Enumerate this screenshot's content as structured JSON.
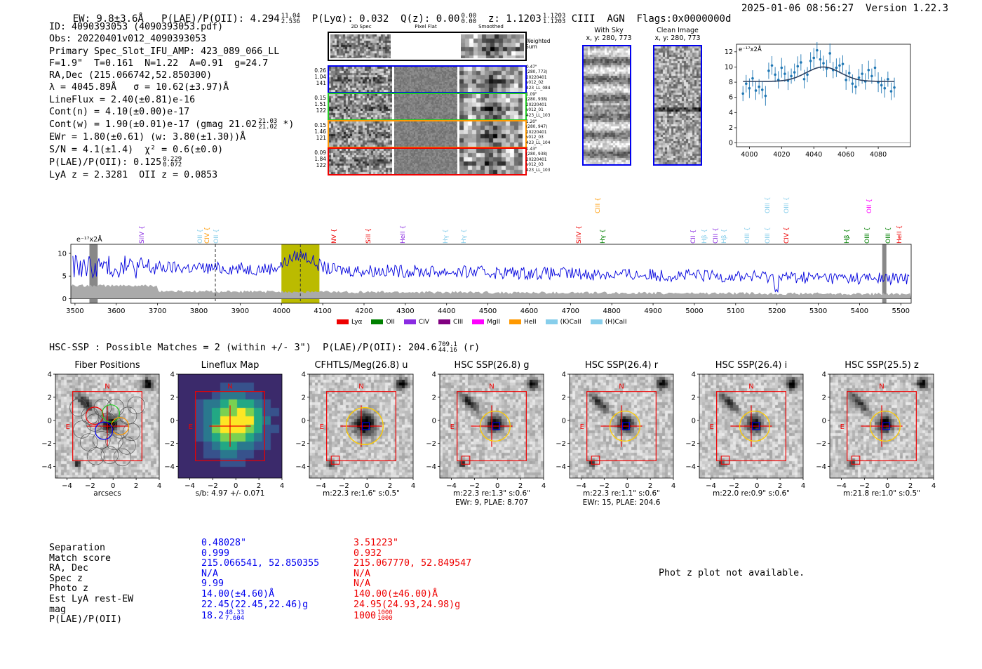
{
  "header": {
    "ew": "EW: 9.8±3.6Å",
    "plae_label": "P(LAE)/P(OII): 4.294",
    "plae_hi": "11.04",
    "plae_lo": "2.536",
    "plya": "P(Lyα): 0.032",
    "qz_label": "Q(z): 0.00",
    "qz_hi": "0.00",
    "qz_lo": "0.00",
    "z_label": "z: 1.1203",
    "z_hi": "1.1203",
    "z_lo": "1.1203",
    "tail": "CIII  AGN  Flags:0x0000000d",
    "datetime": "2025-01-06 08:56:27",
    "version": "Version 1.22.3"
  },
  "info": {
    "lines": [
      "ID: 4090393053 (4090393053.pdf)",
      "Obs: 20220401v012_4090393053",
      "Primary Spec_Slot_IFU_AMP: 423_089_066_LL",
      "F=1.9\"  T=0.161  N=1.22  A=0.91  g=24.7",
      "RA,Dec (215.066742,52.850300)",
      "λ = 4045.89Å   σ = 10.62(±3.97)Å",
      "LineFlux = 2.40(±0.81)e-16",
      "Cont(n) = 4.10(±0.00)e-17"
    ],
    "contw": "Cont(w) = 1.90(±0.01)e-17 (gmag 21.02",
    "contw_hi": "21.03",
    "contw_lo": "21.02",
    "contw_end": "*)",
    "ewr": "EWr = 1.80(±0.61) (w: 3.80(±1.30))Å",
    "sn": "S/N = 4.1(±1.4)  χ² = 0.6(±0.0)",
    "plae2": "P(LAE)/P(OII): 0.125",
    "plae2_hi": "0.229",
    "plae2_lo": "0.072",
    "lyaz": "LyA z = 2.3281  OII z = 0.0853"
  },
  "cutouts": {
    "col_titles": [
      "2D Spec",
      "Pixel Flat",
      "Smoothed"
    ],
    "weighted": "Weighted\nSum",
    "rows": [
      {
        "vals": [
          "0.26",
          "1.04",
          "141"
        ],
        "notes": [
          "0.47\"",
          "(280, 773)",
          "20220401",
          "v012_02",
          "423_LL_084"
        ],
        "color": "#0000ee"
      },
      {
        "vals": [
          "0.15",
          "1.51",
          "122"
        ],
        "notes": [
          "1.09\"",
          "(280, 938)",
          "20220401",
          "v012_01",
          "423_LL_103"
        ],
        "color": "#22cc22"
      },
      {
        "vals": [
          "0.15",
          "1.46",
          "121"
        ],
        "notes": [
          "1.20\"",
          "(280, 947)",
          "20220401",
          "v012_03",
          "423_LL_104"
        ],
        "color": "#ff9900"
      },
      {
        "vals": [
          "0.09",
          "1.84",
          "122"
        ],
        "notes": [
          "1.43\"",
          "(280, 938)",
          "20220401",
          "v012_03",
          "423_LL_103"
        ],
        "color": "#ee0000"
      }
    ]
  },
  "sky": {
    "title1": "With Sky",
    "sub1": "x, y: 280, 773",
    "title2": "Clean Image",
    "sub2": "x, y: 280, 773"
  },
  "zoom_chart": {
    "type": "line",
    "unit": "e⁻¹⁷x2Å",
    "xticks": [
      4000,
      4020,
      4040,
      4060,
      4080
    ],
    "yticks": [
      0,
      2,
      4,
      6,
      8,
      10,
      12
    ],
    "xlim": [
      3992,
      4100
    ],
    "ylim": [
      -0.5,
      13
    ],
    "x": [
      3996,
      3998,
      4000,
      4002,
      4004,
      4006,
      4008,
      4010,
      4012,
      4014,
      4016,
      4018,
      4020,
      4022,
      4024,
      4026,
      4028,
      4030,
      4032,
      4034,
      4036,
      4038,
      4040,
      4042,
      4044,
      4046,
      4048,
      4050,
      4052,
      4054,
      4056,
      4058,
      4060,
      4062,
      4064,
      4066,
      4068,
      4070,
      4072,
      4074,
      4076,
      4078,
      4080,
      4082,
      4084,
      4086,
      4088,
      4090
    ],
    "y": [
      6.5,
      7.8,
      7.2,
      8.5,
      6.9,
      7.4,
      7.0,
      6.2,
      9.5,
      10.2,
      9.0,
      8.3,
      9.9,
      9.1,
      8.2,
      8.8,
      9.3,
      10.1,
      10.6,
      8.4,
      9.0,
      10.8,
      11.2,
      12.2,
      11.0,
      10.5,
      9.8,
      11.8,
      9.6,
      9.9,
      10.2,
      10.4,
      8.3,
      9.2,
      7.8,
      7.4,
      8.6,
      9.1,
      8.1,
      9.6,
      8.8,
      9.9,
      8.0,
      7.6,
      7.2,
      8.4,
      6.8,
      7.3
    ],
    "fit_base": 8.1,
    "fit_amp": 1.9,
    "fit_center": 4045.9,
    "fit_sigma": 10.62
  },
  "spectrum": {
    "unit": "e⁻¹⁷x2Å",
    "xticks": [
      3500,
      3600,
      3700,
      3800,
      3900,
      4000,
      4100,
      4200,
      4300,
      4400,
      4500,
      4600,
      4700,
      4800,
      4900,
      5000,
      5100,
      5200,
      5300,
      5400,
      5500
    ],
    "yticks": [
      0,
      5,
      10
    ],
    "xlim": [
      3490,
      5525
    ],
    "ylim": [
      -1,
      12
    ],
    "highlight": [
      4000,
      4092
    ],
    "center": 4045.9,
    "dash_extra": 3840,
    "gray_bands": [
      [
        3535,
        3555
      ],
      [
        5455,
        5465
      ]
    ],
    "lines": [
      {
        "name": "SiIV {",
        "x": 3663,
        "color": "#8a2be2",
        "row": 1
      },
      {
        "name": "OII {",
        "x": 3804,
        "color": "#87ceeb",
        "row": 1
      },
      {
        "name": "CIV {",
        "x": 3822,
        "color": "#ff9900",
        "row": 1
      },
      {
        "name": "OII {",
        "x": 3843,
        "color": "#87ceeb",
        "row": 1
      },
      {
        "name": "NV {",
        "x": 4128,
        "color": "#ee0000",
        "row": 1
      },
      {
        "name": "SiII {",
        "x": 4212,
        "color": "#ee0000",
        "row": 1
      },
      {
        "name": "HeII {",
        "x": 4296,
        "color": "#8a2be2",
        "row": 1
      },
      {
        "name": "Hγ {",
        "x": 4398,
        "color": "#87ceeb",
        "row": 1
      },
      {
        "name": "Hγ {",
        "x": 4443,
        "color": "#87ceeb",
        "row": 1
      },
      {
        "name": "SiIV {",
        "x": 4722,
        "color": "#ee0000",
        "row": 1
      },
      {
        "name": "Hγ {",
        "x": 4779,
        "color": "#008000",
        "row": 1
      },
      {
        "name": "CIII {",
        "x": 4768,
        "color": "#ff9900",
        "row": 0
      },
      {
        "name": "CII {",
        "x": 4998,
        "color": "#8a2be2",
        "row": 1
      },
      {
        "name": "Hβ {",
        "x": 5025,
        "color": "#87ceeb",
        "row": 1
      },
      {
        "name": "CIII {",
        "x": 5052,
        "color": "#8a2be2",
        "row": 1
      },
      {
        "name": "Hβ {",
        "x": 5073,
        "color": "#87ceeb",
        "row": 1
      },
      {
        "name": "OIII {",
        "x": 5130,
        "color": "#87ceeb",
        "row": 1
      },
      {
        "name": "OIII {",
        "x": 5178,
        "color": "#87ceeb",
        "row": 1
      },
      {
        "name": "OIII {",
        "x": 5178,
        "color": "#87ceeb",
        "row": 0
      },
      {
        "name": "CIV {",
        "x": 5224,
        "color": "#ee0000",
        "row": 1
      },
      {
        "name": "OIII {",
        "x": 5225,
        "color": "#87ceeb",
        "row": 0
      },
      {
        "name": "Hβ {",
        "x": 5370,
        "color": "#008000",
        "row": 1
      },
      {
        "name": "OIII {",
        "x": 5419,
        "color": "#008000",
        "row": 1
      },
      {
        "name": "OII {",
        "x": 5424,
        "color": "#ff00ff",
        "row": 0
      },
      {
        "name": "OIII {",
        "x": 5471,
        "color": "#008000",
        "row": 1
      },
      {
        "name": "HeII {",
        "x": 5497,
        "color": "#ee0000",
        "row": 1
      }
    ],
    "legend": [
      {
        "label": "Lyα",
        "color": "#ee0000"
      },
      {
        "label": "OII",
        "color": "#008000"
      },
      {
        "label": "CIV",
        "color": "#8a2be2"
      },
      {
        "label": "CIII",
        "color": "#800080"
      },
      {
        "label": "MgII",
        "color": "#ff00ff"
      },
      {
        "label": "HeII",
        "color": "#ff9900"
      },
      {
        "label": "(K)CaII",
        "color": "#87ceeb"
      },
      {
        "label": "(H)CaII",
        "color": "#87ceeb"
      }
    ]
  },
  "hsc": {
    "summary": "HSC-SSP : Possible Matches = 2 (within +/- 3\")  P(LAE)/P(OII): 204.6",
    "summary_hi": "709.1",
    "summary_lo": "44.16",
    "summary_band": "(r)"
  },
  "panels": [
    {
      "title": "Fiber Positions",
      "cap1": "arcsecs",
      "cap2": ""
    },
    {
      "title": "Lineflux Map",
      "cap1": "s/b: 4.97 +/- 0.071",
      "cap2": ""
    },
    {
      "title": "CFHTLS/Meg(26.8) u",
      "cap1": "m:22.3  re:1.6\"  s:0.5\"",
      "cap2": ""
    },
    {
      "title": "HSC SSP(26.8) g",
      "cap1": "m:22.3  re:1.3\"  s:0.6\"",
      "cap2": "EWr: 9, PLAE: 8.707"
    },
    {
      "title": "HSC SSP(26.4) r",
      "cap1": "m:22.3  re:1.1\"  s:0.6\"",
      "cap2": "EWr: 15, PLAE: 204.6"
    },
    {
      "title": "HSC SSP(26.4) i",
      "cap1": "m:22.0  re:0.9\"  s:0.6\"",
      "cap2": ""
    },
    {
      "title": "HSC SSP(25.5) z",
      "cap1": "m:21.8  re:1.0\"  s:0.5\"",
      "cap2": ""
    }
  ],
  "panel_axes": {
    "ticks": [
      "−4",
      "−2",
      "0",
      "2",
      "4"
    ],
    "north": "N",
    "east": "E"
  },
  "table": {
    "labels": [
      "Separation",
      "Match score",
      "RA, Dec",
      "Spec z",
      "Photo z",
      "Est LyA rest-EW",
      "mag",
      "P(LAE)/P(OII)"
    ],
    "col1": [
      "0.48028\"",
      "0.999",
      "215.066541, 52.850355",
      "N/A",
      "9.99",
      "14.00(±4.60)Å",
      "22.45(22.45,22.46)g",
      "18.2"
    ],
    "col1_plae_hi": "48.33",
    "col1_plae_lo": "7.604",
    "col2": [
      "3.51223\"",
      "0.932",
      "215.067770, 52.849547",
      "N/A",
      "N/A",
      "140.00(±46.00)Å",
      "24.95(24.93,24.98)g",
      "1000"
    ],
    "col2_plae_hi": "1000",
    "col2_plae_lo": "1000"
  },
  "photz": "Phot z plot not available."
}
